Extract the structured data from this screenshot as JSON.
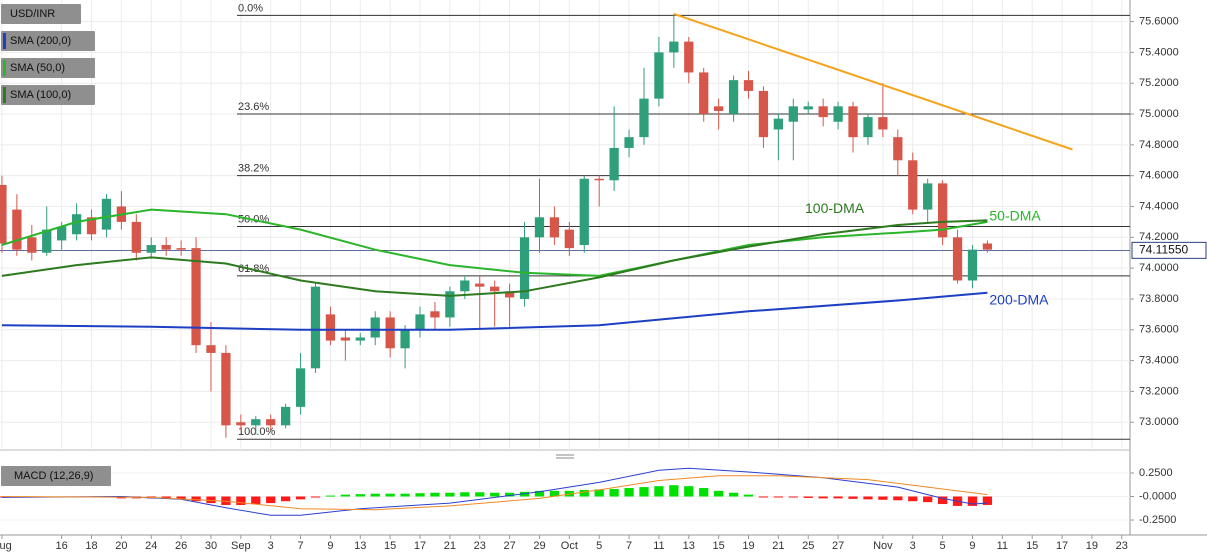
{
  "chart_data": [
    {
      "type": "candlestick",
      "title": "USD/INR",
      "x": [
        0,
        1,
        2,
        3,
        4,
        5,
        6,
        7,
        8,
        9,
        10,
        11,
        12,
        13,
        14,
        15,
        16,
        17,
        18,
        19,
        20,
        21,
        22,
        23,
        24,
        25,
        26,
        27,
        28,
        29,
        30,
        31,
        32,
        33,
        34,
        35,
        36,
        37,
        38,
        39,
        40,
        41,
        42,
        43,
        44,
        45,
        46,
        47,
        48,
        49,
        50,
        51,
        52,
        53,
        54,
        55,
        56,
        57,
        58,
        59,
        60,
        61,
        62,
        63,
        64,
        65,
        66
      ],
      "open": [
        74.54,
        74.38,
        74.2,
        74.1,
        74.18,
        74.22,
        74.33,
        74.25,
        74.4,
        74.3,
        74.1,
        74.15,
        74.13,
        74.13,
        73.5,
        73.45,
        73.0,
        72.98,
        73.02,
        72.98,
        73.1,
        73.35,
        73.7,
        73.55,
        73.53,
        73.55,
        73.68,
        73.48,
        73.6,
        73.72,
        73.68,
        73.85,
        73.9,
        73.88,
        73.85,
        73.8,
        74.2,
        74.33,
        74.25,
        74.15,
        74.58,
        74.57,
        74.78,
        74.85,
        75.1,
        75.4,
        75.47,
        75.27,
        75.05,
        75.0,
        75.22,
        75.15,
        74.9,
        74.95,
        75.03,
        75.05,
        74.95,
        75.05,
        74.85,
        74.98,
        74.85,
        74.7,
        74.38,
        74.55,
        74.2,
        73.92,
        74.16
      ],
      "high": [
        74.6,
        74.48,
        74.28,
        74.4,
        74.3,
        74.42,
        74.38,
        74.48,
        74.5,
        74.35,
        74.2,
        74.2,
        74.18,
        74.2,
        73.65,
        73.5,
        73.05,
        73.04,
        73.05,
        73.12,
        73.45,
        73.9,
        73.75,
        73.6,
        73.58,
        73.72,
        73.72,
        73.63,
        73.75,
        73.78,
        73.88,
        73.95,
        73.95,
        73.92,
        73.9,
        74.3,
        74.58,
        74.4,
        74.3,
        74.6,
        74.6,
        75.05,
        74.9,
        75.3,
        75.5,
        75.65,
        75.5,
        75.3,
        75.1,
        75.25,
        75.28,
        75.18,
        75.0,
        75.1,
        75.08,
        75.1,
        75.08,
        75.08,
        75.0,
        75.2,
        74.9,
        74.75,
        74.58,
        74.57,
        74.25,
        74.15,
        74.18
      ],
      "low": [
        74.1,
        74.08,
        74.05,
        74.08,
        74.12,
        74.18,
        74.18,
        74.2,
        74.25,
        74.05,
        74.06,
        74.08,
        74.08,
        73.45,
        73.2,
        72.9,
        72.95,
        72.92,
        72.95,
        72.96,
        73.05,
        73.32,
        73.5,
        73.4,
        73.5,
        73.5,
        73.42,
        73.35,
        73.55,
        73.6,
        73.62,
        73.8,
        73.6,
        73.62,
        73.62,
        73.75,
        74.1,
        74.15,
        74.08,
        74.1,
        74.4,
        74.5,
        74.72,
        74.8,
        75.05,
        75.3,
        75.2,
        74.95,
        74.9,
        74.95,
        75.1,
        74.78,
        74.7,
        74.7,
        75.0,
        74.92,
        74.9,
        74.75,
        74.8,
        74.85,
        74.6,
        74.35,
        74.3,
        74.15,
        73.9,
        73.87,
        74.1
      ],
      "close": [
        74.16,
        74.12,
        74.1,
        74.25,
        74.27,
        74.35,
        74.22,
        74.45,
        74.3,
        74.1,
        74.15,
        74.12,
        74.12,
        73.5,
        73.45,
        72.98,
        72.98,
        73.02,
        72.98,
        73.1,
        73.35,
        73.88,
        73.53,
        73.53,
        73.55,
        73.68,
        73.48,
        73.6,
        73.7,
        73.68,
        73.85,
        73.92,
        73.88,
        73.85,
        73.81,
        74.2,
        74.33,
        74.2,
        74.13,
        74.58,
        74.57,
        74.78,
        74.85,
        75.1,
        75.4,
        75.47,
        75.27,
        75.0,
        75.02,
        75.22,
        75.15,
        74.85,
        74.97,
        75.05,
        75.05,
        74.98,
        75.05,
        74.85,
        74.98,
        74.9,
        74.7,
        74.38,
        74.55,
        74.2,
        73.92,
        74.12,
        74.12
      ],
      "up_color": "#2f9e7a",
      "down_color": "#d6564a",
      "xlim": [
        -0.13,
        75.55
      ],
      "xticks": [
        {
          "value": 0,
          "label": "Aug"
        },
        {
          "value": 4,
          "label": "16"
        },
        {
          "value": 6,
          "label": "18"
        },
        {
          "value": 8,
          "label": "20"
        },
        {
          "value": 10,
          "label": "24"
        },
        {
          "value": 12,
          "label": "26"
        },
        {
          "value": 14,
          "label": "30"
        },
        {
          "value": 16,
          "label": "Sep"
        },
        {
          "value": 18,
          "label": "3"
        },
        {
          "value": 20,
          "label": "7"
        },
        {
          "value": 22,
          "label": "9"
        },
        {
          "value": 24,
          "label": "13"
        },
        {
          "value": 26,
          "label": "15"
        },
        {
          "value": 28,
          "label": "17"
        },
        {
          "value": 30,
          "label": "21"
        },
        {
          "value": 32,
          "label": "23"
        },
        {
          "value": 34,
          "label": "27"
        },
        {
          "value": 36,
          "label": "29"
        },
        {
          "value": 38,
          "label": "Oct"
        },
        {
          "value": 40,
          "label": "5"
        },
        {
          "value": 42,
          "label": "7"
        },
        {
          "value": 44,
          "label": "11"
        },
        {
          "value": 46,
          "label": "13"
        },
        {
          "value": 48,
          "label": "15"
        },
        {
          "value": 50,
          "label": "19"
        },
        {
          "value": 52,
          "label": "21"
        },
        {
          "value": 54,
          "label": "25"
        },
        {
          "value": 56,
          "label": "27"
        },
        {
          "value": 59,
          "label": "Nov"
        },
        {
          "value": 61,
          "label": "3"
        },
        {
          "value": 63,
          "label": "5"
        },
        {
          "value": 65,
          "label": "9"
        },
        {
          "value": 67,
          "label": "11"
        },
        {
          "value": 69,
          "label": "15"
        },
        {
          "value": 71,
          "label": "17"
        },
        {
          "value": 73,
          "label": "19"
        },
        {
          "value": 75,
          "label": "23"
        }
      ],
      "ylim": [
        72.82,
        75.74
      ],
      "yticks": [
        {
          "value": 73.0,
          "label": "73.0000"
        },
        {
          "value": 73.2,
          "label": "73.2000"
        },
        {
          "value": 73.4,
          "label": "73.4000"
        },
        {
          "value": 73.6,
          "label": "73.6000"
        },
        {
          "value": 73.8,
          "label": "73.8000"
        },
        {
          "value": 74.0,
          "label": "74.0000"
        },
        {
          "value": 74.2,
          "label": "74.2000"
        },
        {
          "value": 74.4,
          "label": "74.4000"
        },
        {
          "value": 74.6,
          "label": "74.6000"
        },
        {
          "value": 74.8,
          "label": "74.8000"
        },
        {
          "value": 75.0,
          "label": "75.0000"
        },
        {
          "value": 75.2,
          "label": "75.2000"
        },
        {
          "value": 75.4,
          "label": "75.4000"
        },
        {
          "value": 75.6,
          "label": "75.6000"
        }
      ],
      "grid": true,
      "last": {
        "value": 74.1155,
        "label": "74.11550"
      },
      "series": [
        {
          "name": "SMA (200,0)",
          "label": "200-DMA",
          "color": "#1d3fc4",
          "x": [
            0,
            10,
            20,
            30,
            40,
            50,
            60,
            66
          ],
          "values": [
            73.63,
            73.62,
            73.6,
            73.6,
            73.63,
            73.72,
            73.79,
            73.84
          ]
        },
        {
          "name": "SMA (50,0)",
          "label": "50-DMA",
          "color": "#2bb52b",
          "x": [
            0,
            5,
            10,
            15,
            20,
            25,
            30,
            35,
            40,
            45,
            50,
            55,
            60,
            63,
            66
          ],
          "values": [
            74.15,
            74.3,
            74.38,
            74.35,
            74.25,
            74.12,
            74.02,
            73.97,
            73.95,
            74.05,
            74.15,
            74.2,
            74.23,
            74.25,
            74.3
          ]
        },
        {
          "name": "SMA (100,0)",
          "label": "100-DMA",
          "color": "#2d7a1f",
          "x": [
            0,
            5,
            10,
            15,
            20,
            25,
            30,
            35,
            40,
            45,
            50,
            55,
            60,
            63,
            66
          ],
          "values": [
            73.95,
            74.02,
            74.07,
            74.03,
            73.92,
            73.85,
            73.82,
            73.85,
            73.94,
            74.05,
            74.14,
            74.22,
            74.28,
            74.3,
            74.31
          ]
        }
      ],
      "trendline": {
        "color": "#f5a31a",
        "x": [
          45,
          71.7
        ],
        "values": [
          75.65,
          74.77
        ]
      },
      "fib": [
        {
          "label": "0.0%",
          "value": 75.64
        },
        {
          "label": "23.6%",
          "value": 75.0
        },
        {
          "label": "38.2%",
          "value": 74.6
        },
        {
          "label": "50.0%",
          "value": 74.27
        },
        {
          "label": "61.8%",
          "value": 73.95
        },
        {
          "label": "100.0%",
          "value": 72.89
        }
      ]
    },
    {
      "type": "macd",
      "title": "MACD (12,26,9)",
      "x": [
        0,
        1,
        2,
        3,
        4,
        5,
        6,
        7,
        8,
        9,
        10,
        11,
        12,
        13,
        14,
        15,
        16,
        17,
        18,
        19,
        20,
        21,
        22,
        23,
        24,
        25,
        26,
        27,
        28,
        29,
        30,
        31,
        32,
        33,
        34,
        35,
        36,
        37,
        38,
        39,
        40,
        41,
        42,
        43,
        44,
        45,
        46,
        47,
        48,
        49,
        50,
        51,
        52,
        53,
        54,
        55,
        56,
        57,
        58,
        59,
        60,
        61,
        62,
        63,
        64,
        65,
        66
      ],
      "values": [
        -0.01,
        -0.01,
        -0.01,
        -0.01,
        -0.01,
        -0.01,
        -0.01,
        -0.01,
        -0.02,
        -0.02,
        -0.02,
        -0.02,
        -0.03,
        -0.05,
        -0.07,
        -0.09,
        -0.09,
        -0.08,
        -0.07,
        -0.05,
        -0.03,
        -0.01,
        0.01,
        0.02,
        0.025,
        0.03,
        0.03,
        0.03,
        0.035,
        0.04,
        0.04,
        0.045,
        0.045,
        0.04,
        0.04,
        0.05,
        0.06,
        0.06,
        0.06,
        0.07,
        0.075,
        0.08,
        0.09,
        0.1,
        0.11,
        0.12,
        0.11,
        0.09,
        0.06,
        0.04,
        0.02,
        -0.005,
        -0.01,
        -0.01,
        -0.015,
        -0.02,
        -0.02,
        -0.025,
        -0.03,
        -0.035,
        -0.04,
        -0.05,
        -0.06,
        -0.08,
        -0.1,
        -0.1,
        -0.09
      ],
      "up_color": "#00e000",
      "down_color": "#ff1a1a",
      "xlim": [
        -0.13,
        75.55
      ],
      "ylim": [
        -0.356,
        0.388
      ],
      "yticks": [
        {
          "value": -0.25,
          "label": "-0.2500"
        },
        {
          "value": 0,
          "label": "-0.0000"
        },
        {
          "value": 0.25,
          "label": "0.2500"
        }
      ],
      "series": [
        {
          "color": "#2a3fd0",
          "x": [
            0,
            8,
            12,
            15,
            18,
            20,
            24,
            30,
            36,
            40,
            44,
            46,
            50,
            55,
            60,
            63,
            65,
            66
          ],
          "values": [
            -0.01,
            0.0,
            -0.03,
            -0.12,
            -0.2,
            -0.2,
            -0.13,
            -0.07,
            0.05,
            0.15,
            0.28,
            0.3,
            0.26,
            0.2,
            0.1,
            -0.02,
            -0.08,
            -0.07
          ]
        },
        {
          "color": "#f08a24",
          "x": [
            0,
            10,
            15,
            20,
            25,
            30,
            36,
            40,
            44,
            48,
            52,
            58,
            63,
            66
          ],
          "values": [
            0,
            -0.01,
            -0.05,
            -0.13,
            -0.14,
            -0.1,
            -0.02,
            0.07,
            0.17,
            0.22,
            0.22,
            0.18,
            0.08,
            0.02
          ]
        }
      ]
    }
  ]
}
